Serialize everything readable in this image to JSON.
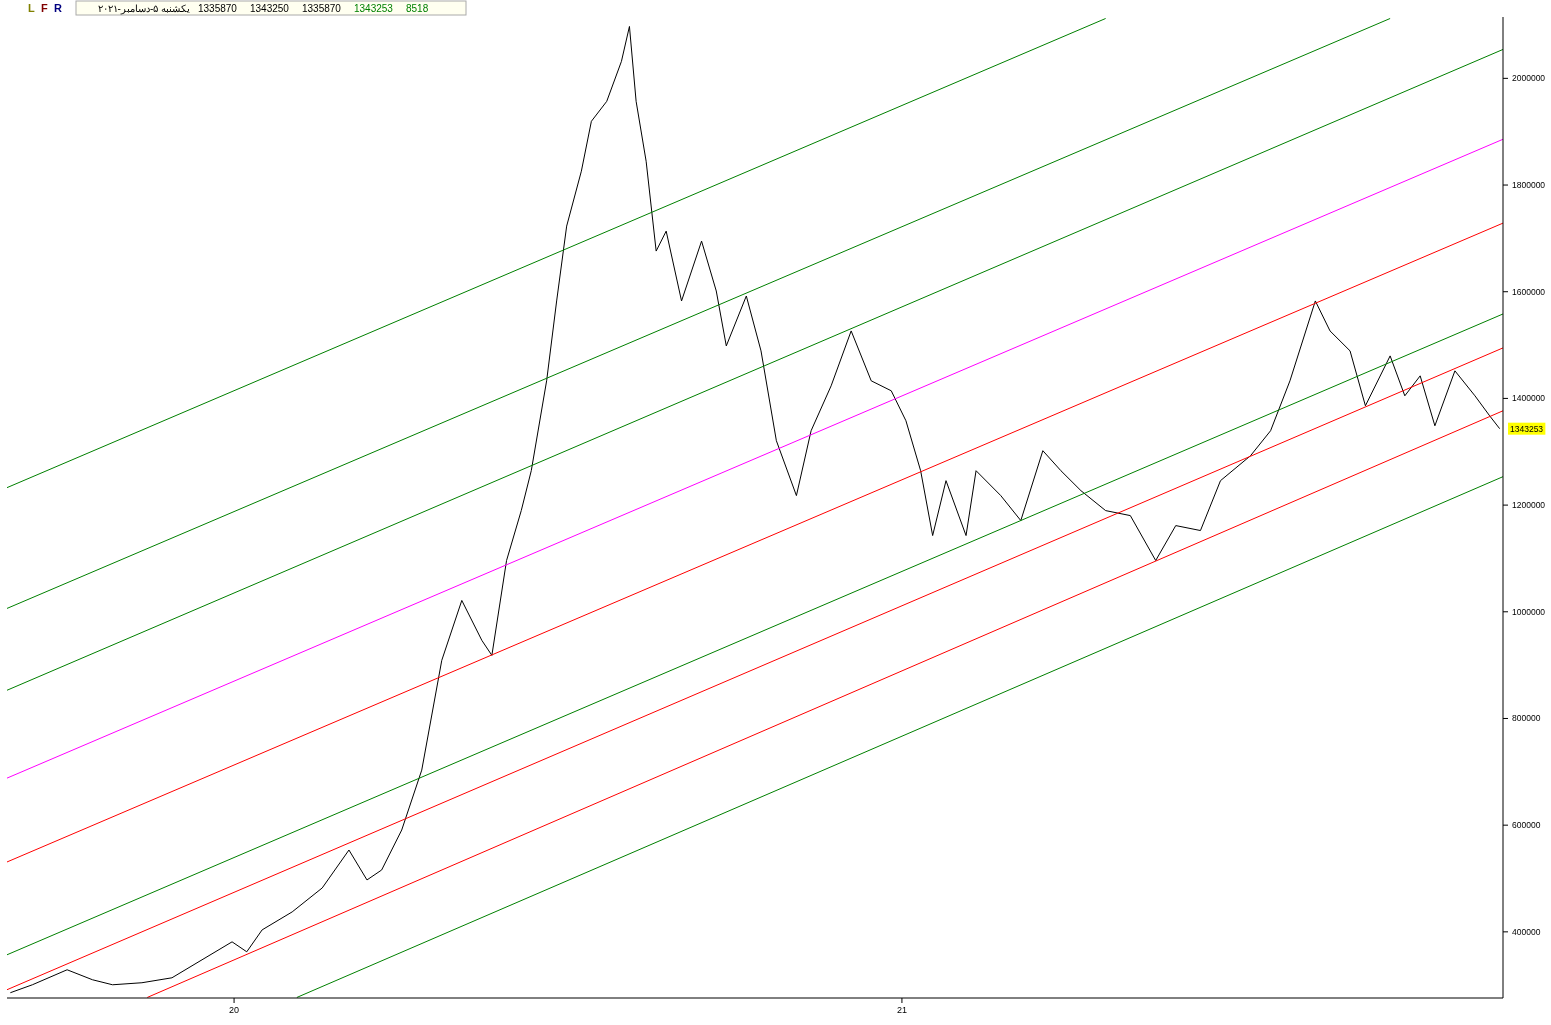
{
  "chart_data": {
    "type": "line",
    "xlim": [
      19.66,
      21.9
    ],
    "ylim": [
      276000,
      2115000
    ],
    "xticks": [
      20,
      21
    ],
    "yticks": [
      400000,
      600000,
      800000,
      1000000,
      1200000,
      1400000,
      1600000,
      1800000,
      2000000
    ],
    "marker": "none",
    "grid": false,
    "series": [
      {
        "color": "#000000",
        "x": [
          19.665,
          19.698,
          19.75,
          19.788,
          19.818,
          19.862,
          19.907,
          19.952,
          19.997,
          20.019,
          20.042,
          20.087,
          20.132,
          20.172,
          20.199,
          20.221,
          20.251,
          20.281,
          20.311,
          20.341,
          20.371,
          20.386,
          20.408,
          20.43,
          20.445,
          20.468,
          20.483,
          20.498,
          20.52,
          20.535,
          20.558,
          20.58,
          20.592,
          20.602,
          20.617,
          20.632,
          20.647,
          20.67,
          20.7,
          20.722,
          20.737,
          20.767,
          20.789,
          20.812,
          20.842,
          20.864,
          20.894,
          20.924,
          20.954,
          20.984,
          21.006,
          21.028,
          21.046,
          21.066,
          21.096,
          21.111,
          21.148,
          21.178,
          21.211,
          21.238,
          21.268,
          21.305,
          21.342,
          21.38,
          21.41,
          21.447,
          21.477,
          21.522,
          21.552,
          21.581,
          21.619,
          21.641,
          21.671,
          21.694,
          21.731,
          21.753,
          21.776,
          21.798,
          21.828,
          21.858,
          21.88,
          21.895
        ],
        "values": [
          285900,
          300800,
          328900,
          310200,
          300800,
          304600,
          313900,
          347600,
          381300,
          362600,
          403700,
          437400,
          482300,
          553400,
          497300,
          516000,
          590900,
          703200,
          909000,
          1021300,
          946400,
          918300,
          1096100,
          1189700,
          1264500,
          1433000,
          1582700,
          1723000,
          1825900,
          1919500,
          1956900,
          2031800,
          2097300,
          1956900,
          1844600,
          1676200,
          1713600,
          1582700,
          1694900,
          1601400,
          1498400,
          1592000,
          1489100,
          1320700,
          1217800,
          1339400,
          1423600,
          1526500,
          1433000,
          1414300,
          1358100,
          1264500,
          1142900,
          1245800,
          1142900,
          1264500,
          1217800,
          1171000,
          1302000,
          1264500,
          1227100,
          1189700,
          1180300,
          1096100,
          1161600,
          1152300,
          1245800,
          1292600,
          1339400,
          1433000,
          1582700,
          1526500,
          1489100,
          1386200,
          1479700,
          1404900,
          1442300,
          1348700,
          1451700,
          1404900,
          1367400,
          1343253
        ]
      },
      {
        "type": "line",
        "color": "#ff0000",
        "x": [
          19.87,
          21.9
        ],
        "values": [
          277000,
          1376800
        ]
      },
      {
        "type": "line",
        "color": "#ff0000",
        "x": [
          19.66,
          21.9
        ],
        "values": [
          531000,
          1728600
        ]
      },
      {
        "type": "line",
        "color": "#ff0000",
        "x": [
          19.66,
          21.9
        ],
        "values": [
          291500,
          1494700
        ]
      },
      {
        "type": "line",
        "color": "#008000",
        "x": [
          19.66,
          21.9
        ],
        "values": [
          357000,
          1558300
        ]
      },
      {
        "type": "line",
        "color": "#008000",
        "x": [
          19.66,
          21.9
        ],
        "values": [
          852900,
          2054200
        ]
      },
      {
        "type": "line",
        "color": "#008000",
        "x": [
          19.66,
          21.731
        ],
        "values": [
          1006300,
          2112200
        ]
      },
      {
        "type": "line",
        "color": "#008000",
        "x": [
          19.66,
          21.305
        ],
        "values": [
          1232700,
          2112200
        ]
      },
      {
        "type": "line",
        "color": "#008000",
        "x": [
          20.094,
          21.9
        ],
        "values": [
          277000,
          1253300
        ]
      },
      {
        "type": "line",
        "color": "#ff00ff",
        "x": [
          19.66,
          21.9
        ],
        "values": [
          688200,
          1885800
        ]
      }
    ],
    "annotations": [
      "L",
      "F",
      "R",
      "یکشنبه ۵-دسامبر-۲۰۲۱",
      "1335870",
      "1343250",
      "1335870",
      "1343253",
      "8518",
      {
        "text": "1343253",
        "x": 21.9,
        "y": 1343253
      }
    ]
  }
}
